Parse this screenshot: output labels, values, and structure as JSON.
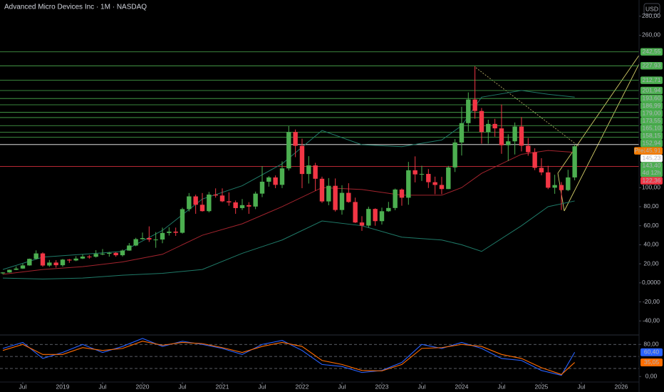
{
  "chart_data": [
    {
      "type": "candlestick",
      "title": "Advanced Micro Devices Inc · 1M · NASDAQ",
      "currency": "USD",
      "up_color": "#4caf50",
      "down_color": "#f23645",
      "x": [
        "2018-04",
        "2018-05",
        "2018-06",
        "2018-07",
        "2018-08",
        "2018-09",
        "2018-10",
        "2018-11",
        "2018-12",
        "2019-01",
        "2019-02",
        "2019-03",
        "2019-04",
        "2019-05",
        "2019-06",
        "2019-07",
        "2019-08",
        "2019-09",
        "2019-10",
        "2019-11",
        "2019-12",
        "2020-01",
        "2020-02",
        "2020-03",
        "2020-04",
        "2020-05",
        "2020-06",
        "2020-07",
        "2020-08",
        "2020-09",
        "2020-10",
        "2020-11",
        "2020-12",
        "2021-01",
        "2021-02",
        "2021-03",
        "2021-04",
        "2021-05",
        "2021-06",
        "2021-07",
        "2021-08",
        "2021-09",
        "2021-10",
        "2021-11",
        "2021-12",
        "2022-01",
        "2022-02",
        "2022-03",
        "2022-04",
        "2022-05",
        "2022-06",
        "2022-07",
        "2022-08",
        "2022-09",
        "2022-10",
        "2022-11",
        "2022-12",
        "2023-01",
        "2023-02",
        "2023-03",
        "2023-04",
        "2023-05",
        "2023-06",
        "2023-07",
        "2023-08",
        "2023-09",
        "2023-10",
        "2023-11",
        "2023-12",
        "2024-01",
        "2024-02",
        "2024-03",
        "2024-04",
        "2024-05",
        "2024-06",
        "2024-07",
        "2024-08",
        "2024-09",
        "2024-10",
        "2024-11",
        "2024-12",
        "2025-01",
        "2025-02",
        "2025-03",
        "2025-04",
        "2025-05",
        "2025-06"
      ],
      "open": [
        10.0,
        10.9,
        13.7,
        15.0,
        18.3,
        25.2,
        30.9,
        18.2,
        21.3,
        18.5,
        24.4,
        23.5,
        25.5,
        27.6,
        27.4,
        30.4,
        30.5,
        31.5,
        29.0,
        33.9,
        39.2,
        45.9,
        47.0,
        45.5,
        45.5,
        52.4,
        53.8,
        52.6,
        77.4,
        90.8,
        82.0,
        75.3,
        92.7,
        91.7,
        85.6,
        84.5,
        78.5,
        81.6,
        80.1,
        93.7,
        106.2,
        110.7,
        102.9,
        120.2,
        158.4,
        143.9,
        114.3,
        123.3,
        109.3,
        85.5,
        101.9,
        76.5,
        94.5,
        84.9,
        63.4,
        60.1,
        77.6,
        64.8,
        75.2,
        78.6,
        98.0,
        89.4,
        118.2,
        113.9,
        114.4,
        105.7,
        102.8,
        98.5,
        121.2,
        147.4,
        167.7,
        192.5,
        180.5,
        158.4,
        166.9,
        162.2,
        144.5,
        148.6,
        164.1,
        144.0,
        137.2,
        120.8,
        116.0,
        99.9,
        102.7,
        97.4,
        110.7
      ],
      "high": [
        11.3,
        14.0,
        17.3,
        20.2,
        25.5,
        34.1,
        32.0,
        24.0,
        23.8,
        25.1,
        25.1,
        28.0,
        29.9,
        29.3,
        34.3,
        35.5,
        32.5,
        32.3,
        35.0,
        41.8,
        47.3,
        52.8,
        59.3,
        53.3,
        58.0,
        58.4,
        58.0,
        78.9,
        94.3,
        92.6,
        94.3,
        95.5,
        99.2,
        99.2,
        95.0,
        86.5,
        88.0,
        84.7,
        95.8,
        122.5,
        112.0,
        112.8,
        127.6,
        164.5,
        161.0,
        151.4,
        133.0,
        126.0,
        111.5,
        110.0,
        109.6,
        102.5,
        104.6,
        89.5,
        70.0,
        80.0,
        78.3,
        79.0,
        85.0,
        99.0,
        99.1,
        127.0,
        132.8,
        122.9,
        119.5,
        111.5,
        111.3,
        122.8,
        151.0,
        184.9,
        200.0,
        227.3,
        183.6,
        171.3,
        172.2,
        187.3,
        156.0,
        168.4,
        174.1,
        152.1,
        141.3,
        130.9,
        122.9,
        113.5,
        105.8,
        118.7,
        145.1
      ],
      "low": [
        9.0,
        10.6,
        13.4,
        14.6,
        18.0,
        24.5,
        16.9,
        16.9,
        16.0,
        17.0,
        21.0,
        22.8,
        25.0,
        25.4,
        26.6,
        29.0,
        27.5,
        27.4,
        27.7,
        33.7,
        38.5,
        45.3,
        43.0,
        36.8,
        41.6,
        49.7,
        49.3,
        51.7,
        75.0,
        72.5,
        74.8,
        74.0,
        89.5,
        84.7,
        81.0,
        72.5,
        76.5,
        72.5,
        77.4,
        90.0,
        101.0,
        99.4,
        99.5,
        118.0,
        132.0,
        99.4,
        104.3,
        96.6,
        84.0,
        81.5,
        74.9,
        71.6,
        84.1,
        62.8,
        54.6,
        58.0,
        60.0,
        61.2,
        74.5,
        76.3,
        81.0,
        82.0,
        105.5,
        107.0,
        99.6,
        93.1,
        93.1,
        98.5,
        116.4,
        133.7,
        159.0,
        172.4,
        146.2,
        146.2,
        153.5,
        135.5,
        128.0,
        134.8,
        138.0,
        133.5,
        118.3,
        113.0,
        98.4,
        93.5,
        76.5,
        96.3,
        107.7
      ],
      "close": [
        10.9,
        13.7,
        15.0,
        18.3,
        25.2,
        30.9,
        18.2,
        21.3,
        18.5,
        24.4,
        23.5,
        25.5,
        27.6,
        27.4,
        30.4,
        30.5,
        31.5,
        29.0,
        33.9,
        39.2,
        45.9,
        47.0,
        45.5,
        45.5,
        52.4,
        53.8,
        52.6,
        77.4,
        90.8,
        82.0,
        75.3,
        92.7,
        91.7,
        85.6,
        84.5,
        78.5,
        81.6,
        80.1,
        93.7,
        106.2,
        110.7,
        102.9,
        120.2,
        158.4,
        143.9,
        114.3,
        123.3,
        109.3,
        85.5,
        101.9,
        76.5,
        94.5,
        84.9,
        63.4,
        60.1,
        77.6,
        64.8,
        75.2,
        78.6,
        98.0,
        89.4,
        118.2,
        113.9,
        114.4,
        105.7,
        102.8,
        98.5,
        121.2,
        147.4,
        167.7,
        192.5,
        180.5,
        158.4,
        166.9,
        162.2,
        144.5,
        148.6,
        164.1,
        144.0,
        137.2,
        120.8,
        116.0,
        99.9,
        102.7,
        97.4,
        110.7,
        143.4
      ],
      "bands": [
        {
          "color": "#1f7a68",
          "x": [
            "2018-04",
            "2018-10",
            "2019-04",
            "2019-10",
            "2020-04",
            "2020-10",
            "2021-04",
            "2021-10",
            "2022-04",
            "2022-10",
            "2023-04",
            "2023-10",
            "2024-01",
            "2024-04",
            "2024-10",
            "2025-02",
            "2025-06"
          ],
          "values": [
            14,
            27,
            30,
            33,
            55,
            88,
            102,
            125,
            160,
            145,
            143,
            150,
            165,
            195,
            202,
            198,
            195
          ]
        },
        {
          "color": "#a3242e",
          "x": [
            "2018-04",
            "2018-10",
            "2019-04",
            "2019-10",
            "2020-04",
            "2020-10",
            "2021-04",
            "2021-10",
            "2022-04",
            "2022-10",
            "2023-04",
            "2023-10",
            "2024-01",
            "2024-04",
            "2024-10",
            "2025-02",
            "2025-06"
          ],
          "values": [
            9,
            14,
            17,
            22,
            30,
            50,
            62,
            80,
            100,
            98,
            92,
            92,
            100,
            115,
            135,
            139,
            137
          ]
        },
        {
          "color": "#1f7a68",
          "x": [
            "2018-04",
            "2018-10",
            "2019-04",
            "2019-10",
            "2020-04",
            "2020-10",
            "2021-04",
            "2021-10",
            "2022-04",
            "2022-10",
            "2023-04",
            "2023-10",
            "2024-01",
            "2024-04",
            "2024-10",
            "2025-02",
            "2025-06"
          ],
          "values": [
            5,
            4,
            5,
            8,
            10,
            14,
            31,
            45,
            65,
            60,
            48,
            45,
            40,
            33,
            60,
            80,
            86
          ]
        }
      ],
      "levels": {
        "color": "#4caf50",
        "values": [
          242.55,
          227.93,
          212.71,
          201.94,
          193.6,
          186.99,
          179.0,
          173.55,
          165.1,
          158.15,
          152.94
        ],
        "value_labels": [
          "242,55",
          "227,93",
          "212,71",
          "201,94",
          "193,60",
          "186,99",
          "179,00",
          "173,55",
          "165,10",
          "158,15",
          "152,94"
        ]
      },
      "markers": [
        {
          "label": "Pre",
          "value": 145.91,
          "value_label": "145,91",
          "color": "#f57c00"
        },
        {
          "value": 145.23,
          "value_label": "145,23",
          "color": "#ffffff"
        },
        {
          "value": 143.4,
          "value_label": "143,40",
          "countdown": "4d 12h",
          "color": "#4caf50"
        },
        {
          "value": 122.36,
          "value_label": "122,36",
          "color": "#f23645"
        }
      ],
      "ylim": [
        -51,
        297
      ],
      "yticks": [
        {
          "value": -40,
          "label": "-40,00"
        },
        {
          "value": -20,
          "label": "-20,00"
        },
        {
          "value": 0,
          "label": "0,0000"
        },
        {
          "value": 20,
          "label": "20,00"
        },
        {
          "value": 40,
          "label": "40,00"
        },
        {
          "value": 60,
          "label": "60,00"
        },
        {
          "value": 80,
          "label": "80,00"
        },
        {
          "value": 100,
          "label": "100,00"
        },
        {
          "value": 260,
          "label": "260,00"
        },
        {
          "value": 280,
          "label": "280,00"
        }
      ],
      "xticks": [
        {
          "value": "2018-07",
          "label": "Jul"
        },
        {
          "value": "2019-01",
          "label": "2019"
        },
        {
          "value": "2019-07",
          "label": "Jul"
        },
        {
          "value": "2020-01",
          "label": "2020"
        },
        {
          "value": "2020-07",
          "label": "Jul"
        },
        {
          "value": "2021-01",
          "label": "2021"
        },
        {
          "value": "2021-07",
          "label": "Jul"
        },
        {
          "value": "2022-01",
          "label": "2022"
        },
        {
          "value": "2022-07",
          "label": "Jul"
        },
        {
          "value": "2023-01",
          "label": "2023"
        },
        {
          "value": "2023-07",
          "label": "Jul"
        },
        {
          "value": "2024-01",
          "label": "2024"
        },
        {
          "value": "2024-07",
          "label": "Jul"
        },
        {
          "value": "2025-01",
          "label": "2025"
        },
        {
          "value": "2025-07",
          "label": "Jul"
        },
        {
          "value": "2026-01",
          "label": "2026"
        }
      ]
    },
    {
      "type": "line",
      "ylim": [
        -12,
        100
      ],
      "yticks": [
        {
          "value": 80,
          "label": "80,00"
        },
        {
          "value": 0,
          "label": "0,00"
        }
      ],
      "levels": [
        80,
        50,
        20
      ],
      "series": [
        {
          "color": "#2962ff",
          "last_label": "60,40",
          "x": [
            "2018-04",
            "2018-07",
            "2018-10",
            "2019-01",
            "2019-04",
            "2019-07",
            "2019-10",
            "2020-01",
            "2020-04",
            "2020-07",
            "2020-10",
            "2021-01",
            "2021-04",
            "2021-07",
            "2021-10",
            "2022-01",
            "2022-04",
            "2022-07",
            "2022-10",
            "2023-01",
            "2023-04",
            "2023-07",
            "2023-10",
            "2024-01",
            "2024-04",
            "2024-07",
            "2024-10",
            "2025-01",
            "2025-04",
            "2025-06"
          ],
          "values": [
            70,
            85,
            45,
            60,
            80,
            60,
            75,
            95,
            75,
            88,
            80,
            70,
            55,
            80,
            90,
            65,
            30,
            25,
            10,
            15,
            35,
            80,
            70,
            85,
            70,
            45,
            40,
            15,
            3,
            60.4
          ]
        },
        {
          "color": "#ff6d00",
          "last_label": "35,05",
          "x": [
            "2018-04",
            "2018-07",
            "2018-10",
            "2019-01",
            "2019-04",
            "2019-07",
            "2019-10",
            "2020-01",
            "2020-04",
            "2020-07",
            "2020-10",
            "2021-01",
            "2021-04",
            "2021-07",
            "2021-10",
            "2022-01",
            "2022-04",
            "2022-07",
            "2022-10",
            "2023-01",
            "2023-04",
            "2023-07",
            "2023-10",
            "2024-01",
            "2024-04",
            "2024-07",
            "2024-10",
            "2025-01",
            "2025-04",
            "2025-06"
          ],
          "values": [
            65,
            80,
            55,
            55,
            72,
            65,
            70,
            88,
            78,
            85,
            82,
            72,
            60,
            75,
            85,
            75,
            40,
            30,
            15,
            14,
            30,
            70,
            72,
            80,
            75,
            55,
            45,
            22,
            5,
            35.05
          ]
        }
      ]
    }
  ]
}
